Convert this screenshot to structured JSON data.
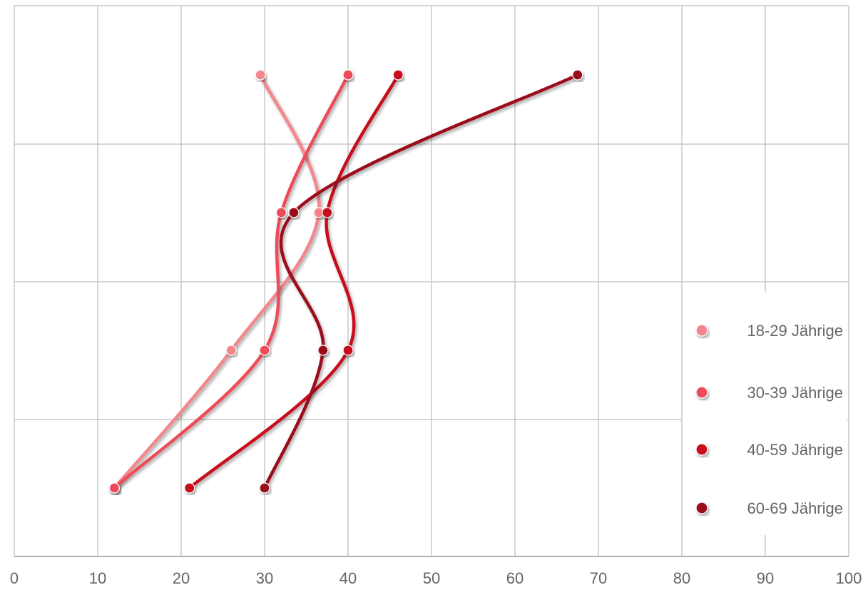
{
  "chart_data": {
    "type": "line",
    "title": "",
    "xlabel": "",
    "ylabel": "",
    "xlim": [
      0,
      100
    ],
    "x_ticks": [
      "0",
      "10",
      "20",
      "30",
      "40",
      "50",
      "60",
      "70",
      "80",
      "90",
      "100"
    ],
    "y_levels": 4,
    "grid": true,
    "legend_position": "right",
    "series": [
      {
        "name": "18-29 Jährige",
        "color": "#F4868D",
        "values": [
          29.5,
          36.5,
          26,
          12
        ]
      },
      {
        "name": "30-39 Jährige",
        "color": "#EE4B59",
        "values": [
          40,
          32,
          30,
          12
        ]
      },
      {
        "name": "40-59 Jährige",
        "color": "#C8091C",
        "values": [
          46,
          37.5,
          40,
          21
        ]
      },
      {
        "name": "60-69 Jährige",
        "color": "#9C0F1E",
        "values": [
          67.5,
          33.5,
          37,
          30
        ]
      }
    ]
  }
}
